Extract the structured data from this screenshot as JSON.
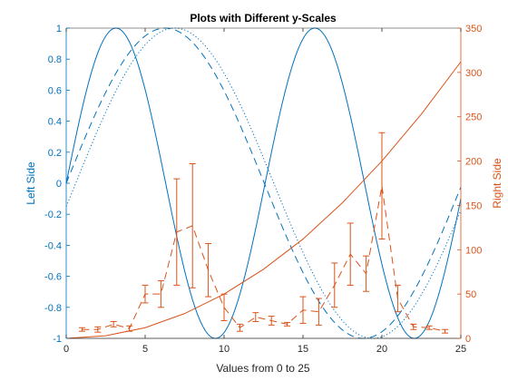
{
  "chart_data": {
    "type": "line",
    "title": "Plots with Different y-Scales",
    "xlabel": "Values from 0 to 25",
    "ylabel_left": "Left Side",
    "ylabel_right": "Right Side",
    "xlim": [
      0,
      25
    ],
    "ylim_left": [
      -1,
      1
    ],
    "ylim_right": [
      0,
      350
    ],
    "x_ticks": [
      "0",
      "5",
      "10",
      "15",
      "20",
      "25"
    ],
    "y_left_ticks": [
      "-1",
      "-0.8",
      "-0.6",
      "-0.4",
      "-0.2",
      "0",
      "0.2",
      "0.4",
      "0.6",
      "0.8",
      "1"
    ],
    "y_right_ticks": [
      "0",
      "50",
      "100",
      "150",
      "200",
      "250",
      "300",
      "350"
    ],
    "grid": false,
    "colors": {
      "left": "#0072BD",
      "right": "#D95319"
    },
    "left_series": [
      {
        "style": "solid",
        "amplitude": 1,
        "period": 12.6,
        "x_range": [
          0,
          25
        ]
      },
      {
        "style": "dashed",
        "amplitude": 1,
        "period": 25.1,
        "x_range": [
          0,
          25
        ]
      },
      {
        "style": "dotted",
        "amplitude": 1,
        "period": 25.1,
        "phase_shift_x": 0.6,
        "x_range": [
          0,
          25
        ]
      }
    ],
    "right_series": [
      {
        "style": "solid",
        "x": [
          0,
          2.5,
          5,
          7.5,
          10,
          12.5,
          15,
          17.5,
          20,
          22.5,
          25
        ],
        "y": [
          0,
          3,
          12,
          28,
          50,
          78,
          112,
          153,
          200,
          253,
          312
        ]
      },
      {
        "style": "dashed-errorbar",
        "x": [
          1,
          2,
          3,
          4,
          5,
          6,
          7,
          8,
          9,
          10,
          11,
          12,
          13,
          14,
          15,
          16,
          17,
          18,
          19,
          20,
          21,
          22,
          23,
          24
        ],
        "y": [
          10,
          10,
          16,
          11,
          50,
          50,
          120,
          127,
          77,
          35,
          12,
          24,
          20,
          16,
          32,
          30,
          60,
          95,
          73,
          172,
          45,
          13,
          12,
          8
        ],
        "err": [
          2,
          3,
          3,
          3,
          10,
          15,
          60,
          70,
          30,
          15,
          4,
          5,
          5,
          2,
          15,
          15,
          25,
          35,
          20,
          60,
          15,
          3,
          2,
          2
        ]
      }
    ]
  }
}
